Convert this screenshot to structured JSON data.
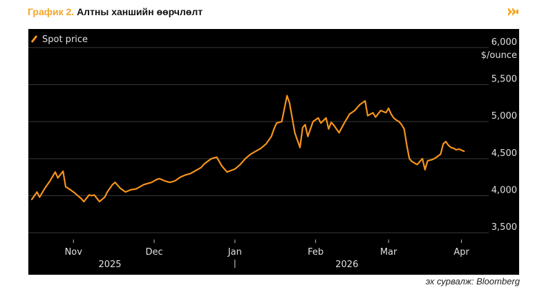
{
  "header": {
    "label": "График 2.",
    "title": "Алтны ханшийн өөрчлөлт"
  },
  "icons": {
    "forward": "double-arrow-right-icon",
    "legend": "orange-line-swatch-icon"
  },
  "colors": {
    "accent": "#f5a623",
    "series": "#f7941d",
    "background": "#000000",
    "grid": "#3a3a3a",
    "text": "#e0e0e0"
  },
  "source": "эх сурвалж: Bloomberg",
  "chart_data": {
    "type": "line",
    "title": "Алтны ханшийн өөрчлөлт",
    "ylabel": "$/ounce",
    "xlabel": "",
    "ylim": [
      3250,
      6250
    ],
    "yticks": [
      3500,
      4000,
      4500,
      5000,
      5500,
      6000
    ],
    "ytick_labels": [
      "3,500",
      "4,000",
      "4,500",
      "5,000",
      "5,500",
      "6,000"
    ],
    "xtick_positions": [
      16,
      47,
      78,
      109,
      137,
      165
    ],
    "xtick_labels": [
      "Nov",
      "Dec",
      "Jan",
      "Feb",
      "Mar",
      "Apr"
    ],
    "year_labels": [
      {
        "label": "2025",
        "position": 30
      },
      {
        "label": "2026",
        "position": 121
      }
    ],
    "year_separator": 78,
    "grid": true,
    "legend": "top-left",
    "series": [
      {
        "name": "Spot price",
        "x": [
          0,
          2,
          3,
          5,
          7,
          9,
          10,
          12,
          13,
          14,
          16,
          19,
          20,
          22,
          23,
          24,
          26,
          28,
          29,
          31,
          32,
          34,
          36,
          38,
          40,
          43,
          46,
          48,
          49,
          51,
          53,
          55,
          57,
          59,
          61,
          63,
          65,
          66,
          67,
          69,
          71,
          73,
          75,
          78,
          80,
          82,
          84,
          86,
          88,
          90,
          92,
          93,
          94,
          96,
          98,
          99,
          101,
          102,
          103,
          104,
          105,
          106,
          108,
          110,
          111,
          113,
          114,
          115,
          116,
          118,
          120,
          122,
          124,
          126,
          128,
          129,
          131,
          132,
          134,
          136,
          137,
          138,
          139,
          140,
          141,
          142,
          143,
          144,
          145,
          146,
          147,
          148,
          149,
          150,
          151,
          152,
          153,
          154,
          155,
          157,
          158,
          159,
          160,
          161,
          162,
          163,
          164,
          166
        ],
        "y": [
          3950,
          4050,
          3980,
          4100,
          4200,
          4320,
          4240,
          4330,
          4120,
          4100,
          4050,
          3960,
          3920,
          4010,
          4000,
          4010,
          3920,
          3980,
          4050,
          4150,
          4180,
          4100,
          4050,
          4080,
          4090,
          4150,
          4180,
          4220,
          4230,
          4200,
          4180,
          4200,
          4250,
          4280,
          4300,
          4340,
          4380,
          4420,
          4450,
          4500,
          4520,
          4400,
          4320,
          4360,
          4420,
          4500,
          4560,
          4600,
          4640,
          4700,
          4800,
          4900,
          4980,
          5000,
          5350,
          5250,
          4850,
          4750,
          4650,
          4920,
          4960,
          4800,
          5000,
          5050,
          4980,
          5050,
          4900,
          4990,
          4950,
          4850,
          4980,
          5100,
          5150,
          5230,
          5280,
          5080,
          5120,
          5060,
          5150,
          5120,
          5180,
          5100,
          5050,
          5020,
          5000,
          4960,
          4900,
          4680,
          4500,
          4460,
          4440,
          4420,
          4460,
          4500,
          4350,
          4470,
          4480,
          4490,
          4510,
          4560,
          4700,
          4730,
          4680,
          4650,
          4640,
          4620,
          4630,
          4600
        ]
      }
    ]
  }
}
